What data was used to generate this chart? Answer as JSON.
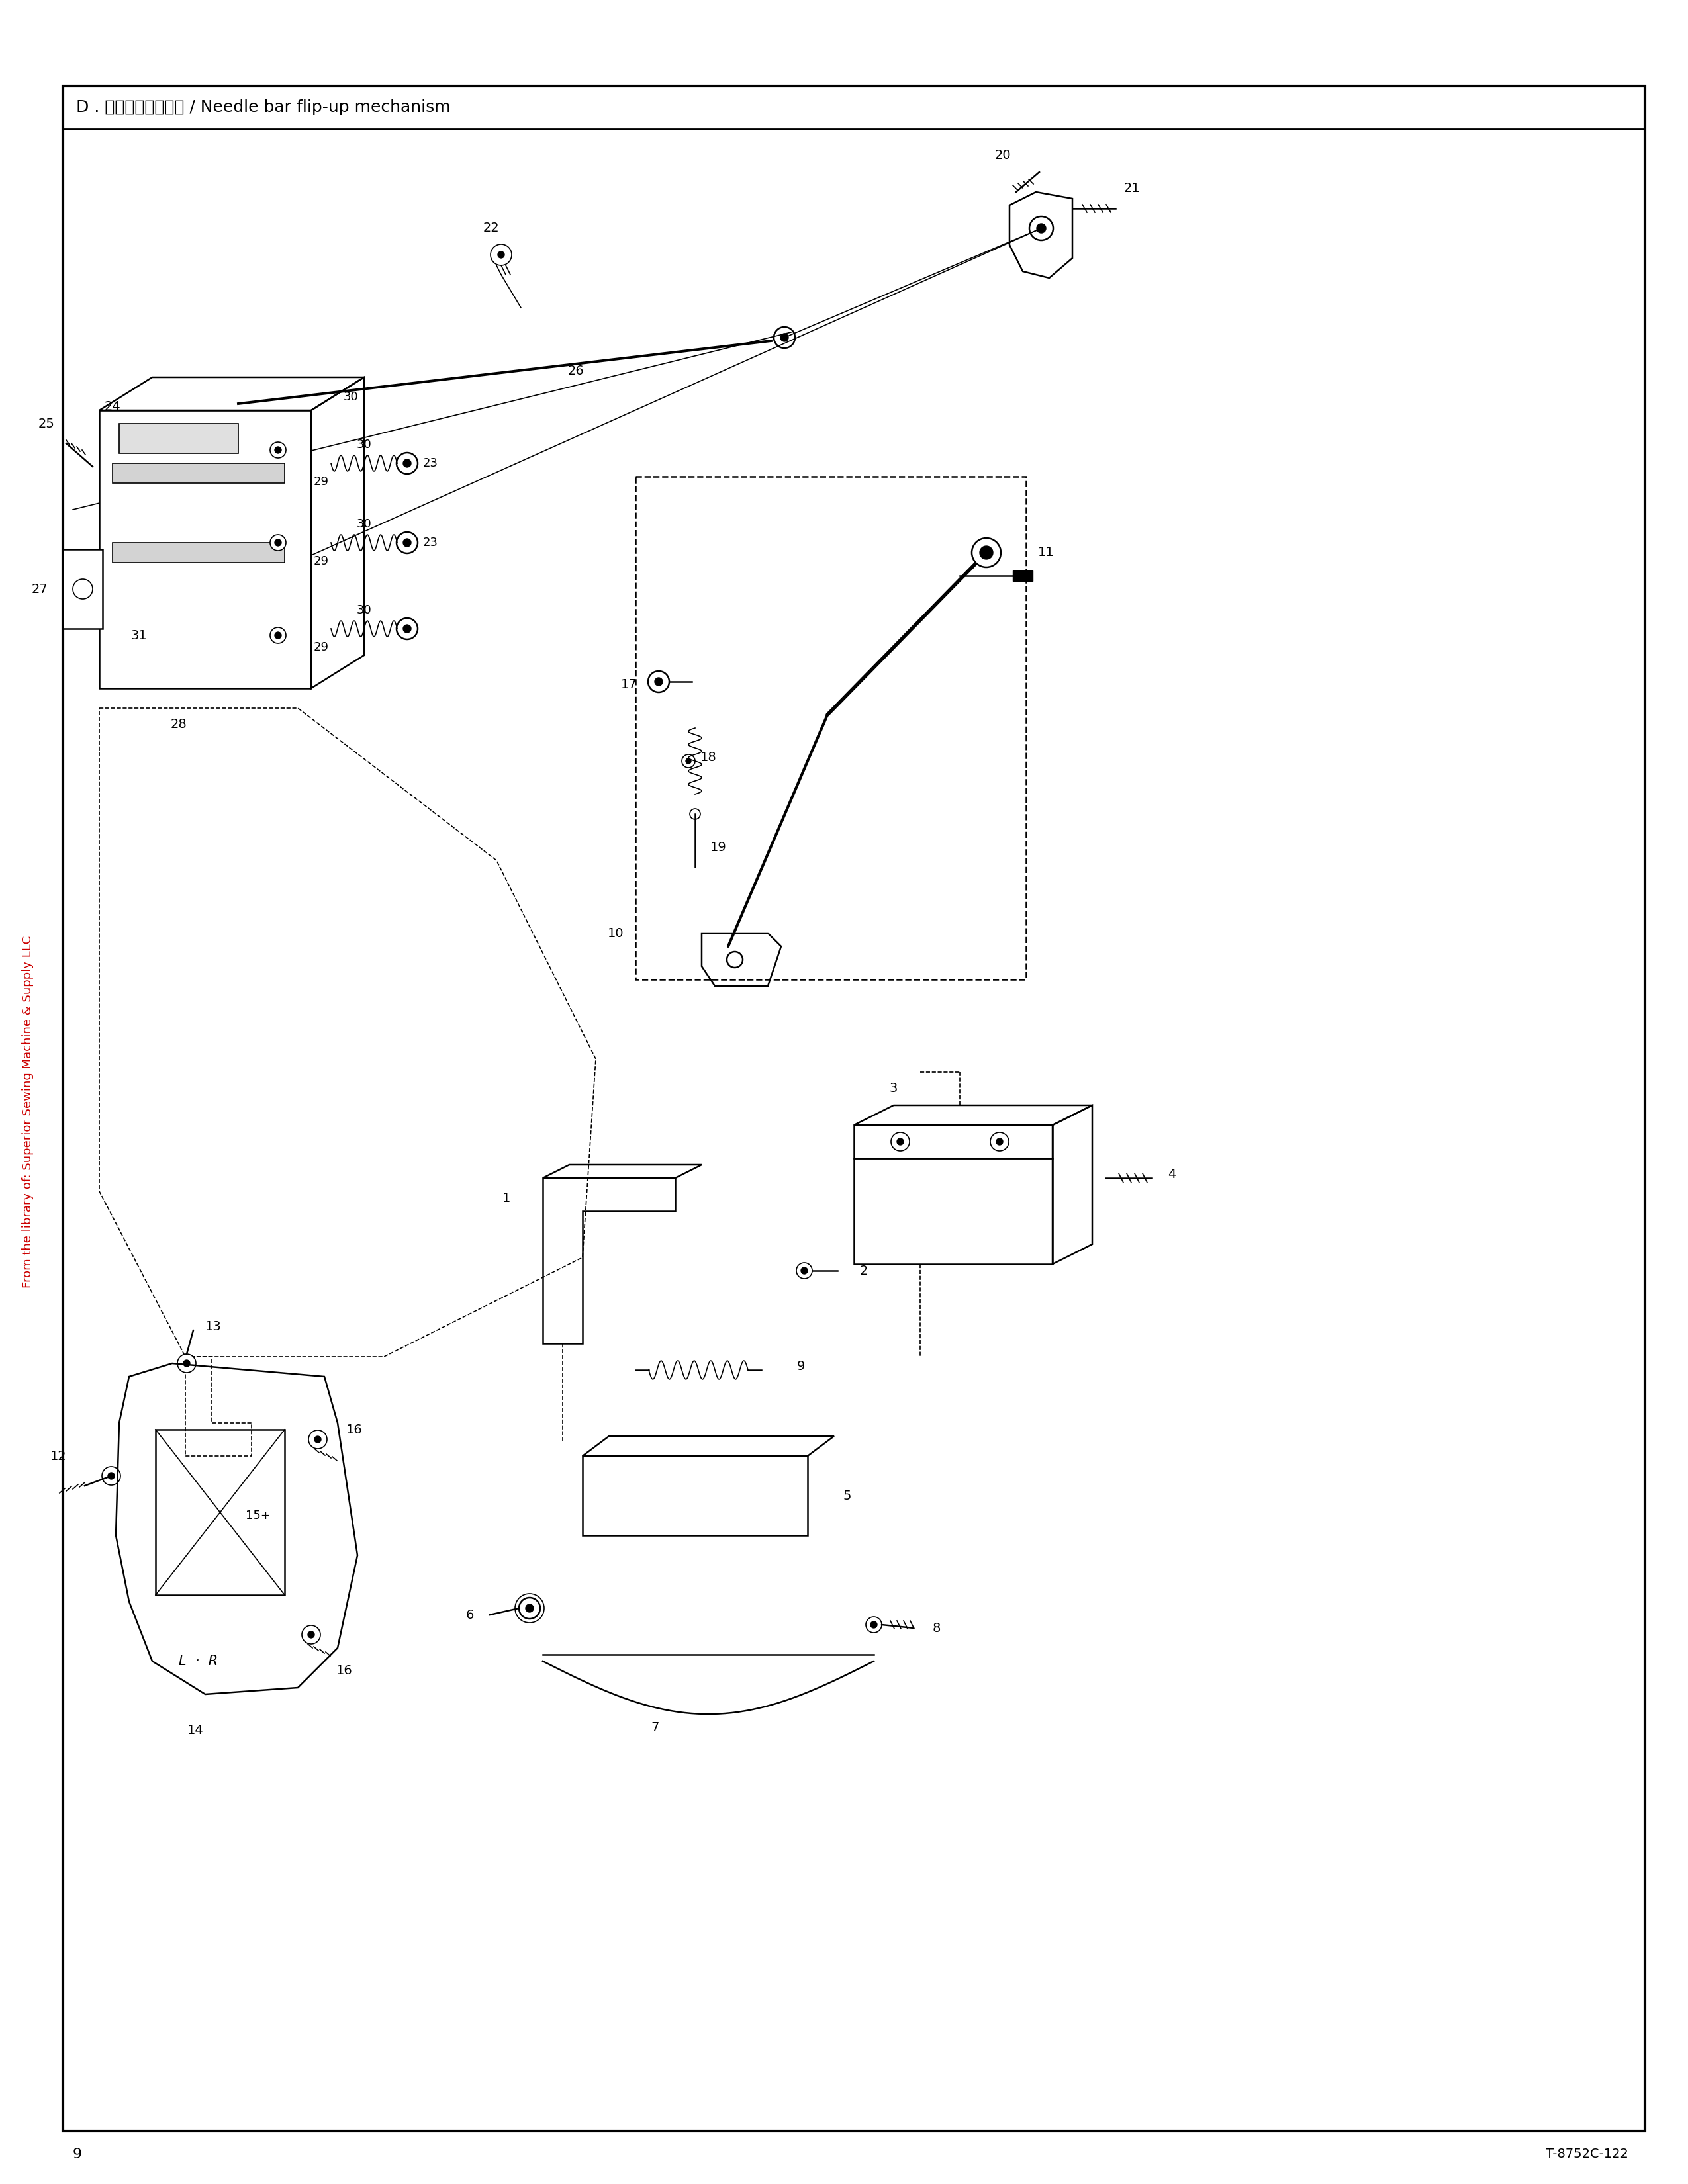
{
  "title": "D . 针棒切換操作関係 / Needle bar flip-up mechanism",
  "page_number": "9",
  "doc_number": "T-8752C-122",
  "sidebar_text": "From the library of: Superior Sewing Machine & Supply LLC",
  "bg_color": "#ffffff",
  "border_color": "#000000",
  "text_color": "#000000",
  "red_color": "#cc0000",
  "title_fontsize": 18,
  "page_num_fontsize": 16,
  "doc_num_fontsize": 14
}
